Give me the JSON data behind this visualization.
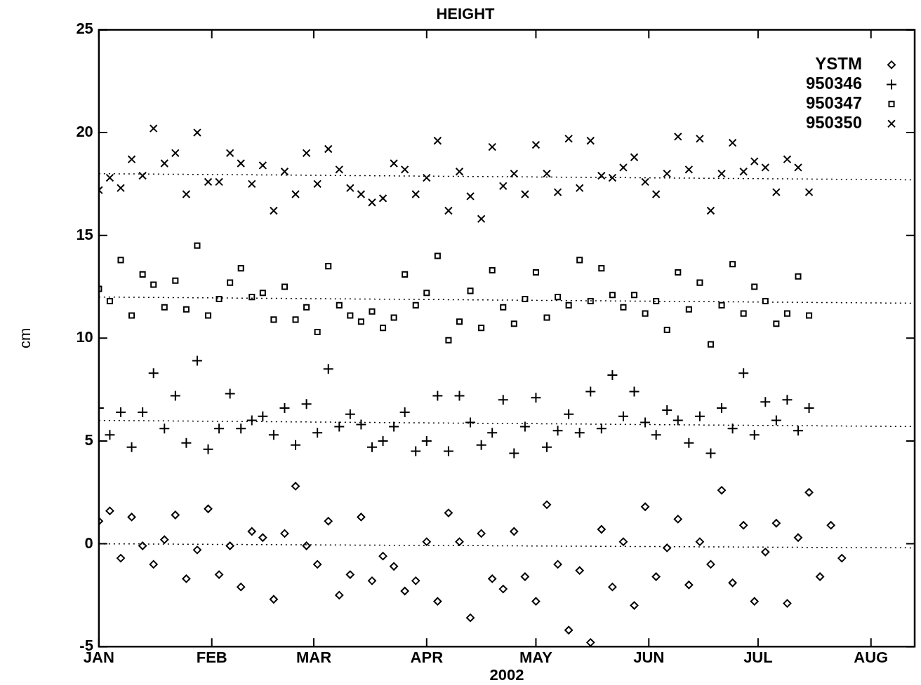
{
  "chart_data": {
    "type": "scatter",
    "title": "HEIGHT",
    "xlabel": "2002",
    "ylabel": "cm",
    "xlim": [
      "2002-01-01",
      "2002-08-13"
    ],
    "xticks": [
      {
        "value": "2002-01-01",
        "label": "JAN"
      },
      {
        "value": "2002-02-01",
        "label": "FEB"
      },
      {
        "value": "2002-03-01",
        "label": "MAR"
      },
      {
        "value": "2002-04-01",
        "label": "APR"
      },
      {
        "value": "2002-05-01",
        "label": "MAY"
      },
      {
        "value": "2002-06-01",
        "label": "JUN"
      },
      {
        "value": "2002-07-01",
        "label": "JUL"
      },
      {
        "value": "2002-08-01",
        "label": "AUG"
      }
    ],
    "ylim": [
      -5,
      25
    ],
    "yticks": [
      -5,
      0,
      5,
      10,
      15,
      20,
      25
    ],
    "grid": false,
    "legend": "top right",
    "x": [
      "2002-01-01",
      "2002-01-04",
      "2002-01-07",
      "2002-01-10",
      "2002-01-13",
      "2002-01-16",
      "2002-01-19",
      "2002-01-22",
      "2002-01-25",
      "2002-01-28",
      "2002-01-31",
      "2002-02-03",
      "2002-02-06",
      "2002-02-09",
      "2002-02-12",
      "2002-02-15",
      "2002-02-18",
      "2002-02-21",
      "2002-02-24",
      "2002-02-27",
      "2002-03-02",
      "2002-03-05",
      "2002-03-08",
      "2002-03-11",
      "2002-03-14",
      "2002-03-17",
      "2002-03-20",
      "2002-03-23",
      "2002-03-26",
      "2002-03-29",
      "2002-04-01",
      "2002-04-04",
      "2002-04-07",
      "2002-04-10",
      "2002-04-13",
      "2002-04-16",
      "2002-04-19",
      "2002-04-22",
      "2002-04-25",
      "2002-04-28",
      "2002-05-01",
      "2002-05-04",
      "2002-05-07",
      "2002-05-10",
      "2002-05-13",
      "2002-05-16",
      "2002-05-19",
      "2002-05-22",
      "2002-05-25",
      "2002-05-28",
      "2002-05-31",
      "2002-06-03",
      "2002-06-06",
      "2002-06-09",
      "2002-06-12",
      "2002-06-15",
      "2002-06-18",
      "2002-06-21",
      "2002-06-24",
      "2002-06-27",
      "2002-06-30",
      "2002-07-03",
      "2002-07-06",
      "2002-07-09",
      "2002-07-12",
      "2002-07-15"
    ],
    "series": [
      {
        "name": "YSTM",
        "color": "#000000",
        "marker": "diamond",
        "x": [
          "2002-01-01",
          "2002-01-04",
          "2002-01-07",
          "2002-01-10",
          "2002-01-13",
          "2002-01-16",
          "2002-01-19",
          "2002-01-22",
          "2002-01-25",
          "2002-01-28",
          "2002-01-31",
          "2002-02-03",
          "2002-02-06",
          "2002-02-09",
          "2002-02-12",
          "2002-02-15",
          "2002-02-18",
          "2002-02-21",
          "2002-02-24",
          "2002-02-27",
          "2002-03-02",
          "2002-03-05",
          "2002-03-08",
          "2002-03-11",
          "2002-03-14",
          "2002-03-17",
          "2002-03-20",
          "2002-03-23",
          "2002-03-26",
          "2002-03-29",
          "2002-04-01",
          "2002-04-04",
          "2002-04-07",
          "2002-04-10",
          "2002-04-13",
          "2002-04-16",
          "2002-04-19",
          "2002-04-22",
          "2002-04-25",
          "2002-04-28",
          "2002-05-01",
          "2002-05-04",
          "2002-05-07",
          "2002-05-10",
          "2002-05-13",
          "2002-05-16",
          "2002-05-19",
          "2002-05-22",
          "2002-05-25",
          "2002-05-28",
          "2002-05-31",
          "2002-06-03",
          "2002-06-06",
          "2002-06-09",
          "2002-06-12",
          "2002-06-15",
          "2002-06-18",
          "2002-06-21",
          "2002-06-24",
          "2002-06-27",
          "2002-06-30",
          "2002-07-03",
          "2002-07-06",
          "2002-07-09",
          "2002-07-12",
          "2002-07-15",
          "2002-07-18",
          "2002-07-21",
          "2002-07-24"
        ],
        "values": [
          1.1,
          1.6,
          -0.7,
          1.3,
          -0.1,
          -1.0,
          0.2,
          1.4,
          -1.7,
          -0.3,
          1.7,
          -1.5,
          -0.1,
          -2.1,
          0.6,
          0.3,
          -2.7,
          0.5,
          2.8,
          -0.1,
          -1.0,
          1.1,
          -2.5,
          -1.5,
          1.3,
          -1.8,
          -0.6,
          -1.1,
          -2.3,
          -1.8,
          0.1,
          -2.8,
          1.5,
          0.1,
          -3.6,
          0.5,
          -1.7,
          -2.2,
          0.6,
          -1.6,
          -2.8,
          1.9,
          -1.0,
          -4.2,
          -1.3,
          -4.8,
          0.7,
          -2.1,
          0.1,
          -3.0,
          1.8,
          -1.6,
          -0.2,
          1.2,
          -2.0,
          0.1,
          -1.0,
          2.6,
          -1.9,
          0.9,
          -2.8,
          -0.4,
          1.0,
          -2.9,
          0.3,
          2.5,
          -1.6,
          0.9,
          -0.7
        ]
      },
      {
        "name": "950346",
        "color": "#000000",
        "marker": "cross",
        "values": [
          6.6,
          5.3,
          6.4,
          4.7,
          6.4,
          8.3,
          5.6,
          7.2,
          4.9,
          8.9,
          4.6,
          5.6,
          7.3,
          5.6,
          6.0,
          6.2,
          5.3,
          6.6,
          4.8,
          6.8,
          5.4,
          8.5,
          5.7,
          6.3,
          5.8,
          4.7,
          5.0,
          5.7,
          6.4,
          4.5,
          5.0,
          7.2,
          4.5,
          7.2,
          5.9,
          4.8,
          5.4,
          7.0,
          4.4,
          5.7,
          7.1,
          4.7,
          5.5,
          6.3,
          5.4,
          7.4,
          5.6,
          8.2,
          6.2,
          7.4,
          5.9,
          5.3,
          6.5,
          6.0,
          4.9,
          6.2,
          4.4,
          6.6,
          5.6,
          8.3,
          5.3,
          6.9,
          6.0,
          7.0,
          5.5,
          6.6
        ]
      },
      {
        "name": "950347",
        "color": "#000000",
        "marker": "square",
        "values": [
          12.4,
          11.8,
          13.8,
          11.1,
          13.1,
          12.6,
          11.5,
          12.8,
          11.4,
          14.5,
          11.1,
          11.9,
          12.7,
          13.4,
          12.0,
          12.2,
          10.9,
          12.5,
          10.9,
          11.5,
          10.3,
          13.5,
          11.6,
          11.1,
          10.8,
          11.3,
          10.5,
          11.0,
          13.1,
          11.6,
          12.2,
          14.0,
          9.9,
          10.8,
          12.3,
          10.5,
          13.3,
          11.5,
          10.7,
          11.9,
          13.2,
          11.0,
          12.0,
          11.6,
          13.8,
          11.8,
          13.4,
          12.1,
          11.5,
          12.1,
          11.2,
          11.8,
          10.4,
          13.2,
          11.4,
          12.7,
          9.7,
          11.6,
          13.6,
          11.2,
          12.5,
          11.8,
          10.7,
          11.2,
          13.0,
          11.1
        ]
      },
      {
        "name": "950350",
        "color": "#000000",
        "marker": "x",
        "values": [
          17.2,
          17.8,
          17.3,
          18.7,
          17.9,
          20.2,
          18.5,
          19.0,
          17.0,
          20.0,
          17.6,
          17.6,
          19.0,
          18.5,
          17.5,
          18.4,
          16.2,
          18.1,
          17.0,
          19.0,
          17.5,
          19.2,
          18.2,
          17.3,
          17.0,
          16.6,
          16.8,
          18.5,
          18.2,
          17.0,
          17.8,
          19.6,
          16.2,
          18.1,
          16.9,
          15.8,
          19.3,
          17.4,
          18.0,
          17.0,
          19.4,
          18.0,
          17.1,
          19.7,
          17.3,
          19.6,
          17.9,
          17.8,
          18.3,
          18.8,
          17.6,
          17.0,
          18.0,
          19.8,
          18.2,
          19.7,
          16.2,
          18.0,
          19.5,
          18.1,
          18.6,
          18.3,
          17.1,
          18.7,
          18.3,
          17.1
        ]
      },
      {
        "type": "line",
        "color": "#000000",
        "marker": "none",
        "line_style": "dotted",
        "x": [
          "2002-01-01",
          "2002-08-13"
        ],
        "values": [
          0.0,
          -0.2
        ]
      },
      {
        "type": "line",
        "color": "#000000",
        "marker": "none",
        "line_style": "dotted",
        "x": [
          "2002-01-01",
          "2002-08-13"
        ],
        "values": [
          6.0,
          5.7
        ]
      },
      {
        "type": "line",
        "color": "#000000",
        "marker": "none",
        "line_style": "dotted",
        "x": [
          "2002-01-01",
          "2002-08-13"
        ],
        "values": [
          12.0,
          11.7
        ]
      },
      {
        "type": "line",
        "color": "#000000",
        "marker": "none",
        "line_style": "dotted",
        "x": [
          "2002-01-01",
          "2002-08-13"
        ],
        "values": [
          18.0,
          17.7
        ]
      }
    ]
  }
}
